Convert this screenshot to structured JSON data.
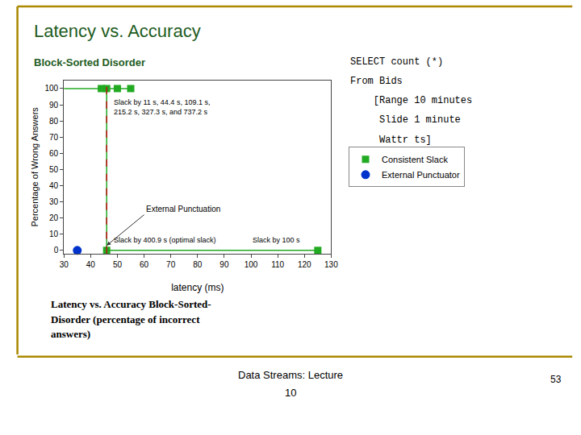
{
  "chart_data": {
    "type": "scatter",
    "title": "Latency vs. Accuracy",
    "subtitle": "Block-Sorted Disorder",
    "title_color": "#1e5c1e",
    "xlabel": "latency (ms)",
    "ylabel": "Percentage of Wrong Answers",
    "xlim": [
      30,
      130
    ],
    "ylim": [
      -2,
      105
    ],
    "xticks": [
      30,
      40,
      50,
      60,
      70,
      80,
      90,
      100,
      110,
      120,
      130
    ],
    "yticks": [
      0,
      10,
      20,
      30,
      40,
      50,
      60,
      70,
      80,
      90,
      100
    ],
    "grid": false,
    "legend": "right",
    "series": [
      {
        "name": "Consistent Slack",
        "type": "scatter",
        "marker": "square",
        "color": "#22aa22",
        "x": [
          44,
          46,
          50,
          55,
          46,
          125
        ],
        "values": [
          100,
          100,
          100,
          100,
          0,
          0
        ]
      },
      {
        "name": "External Punctuator",
        "type": "scatter",
        "marker": "circle",
        "color": "#0033cc",
        "x": [
          35
        ],
        "values": [
          0
        ]
      },
      {
        "type": "line",
        "line_style": "solid",
        "color": "#22aa22",
        "x": [
          30,
          55,
          null,
          46,
          46,
          null,
          46,
          125
        ],
        "values": [
          100,
          100,
          null,
          100,
          0,
          null,
          0,
          0
        ]
      }
    ],
    "vertical_line": {
      "x": 46,
      "color": "#bb1111",
      "line_style": "dashed"
    },
    "annotations": [
      {
        "text": "External Punctuation",
        "x": 60,
        "y": 22,
        "arrow_x": 46,
        "arrow_y": 3
      },
      {
        "text": "Slack by 400.9 s (optimal slack)",
        "x": 48,
        "y": 3
      },
      {
        "text": "Slack by 100 s",
        "x": 100,
        "y": 3
      },
      {
        "text": "Slack by 11 s, 44.4 s, 109.1 s,\n215.2 s, 327.3 s, and 737.2 s",
        "x": 48,
        "y": 95
      }
    ],
    "slide_text": [
      "SELECT count (*)",
      "From Bids",
      "    [Range 10 minutes",
      "     Slide 1 minute",
      "     Wattr ts]"
    ],
    "caption": [
      "Latency vs. Accuracy Block-Sorted-",
      "Disorder (percentage of incorrect",
      "answers)"
    ],
    "footer": [
      "Data Streams: Lecture",
      "10"
    ],
    "page_number": "53",
    "border_color": "#aa8800"
  }
}
